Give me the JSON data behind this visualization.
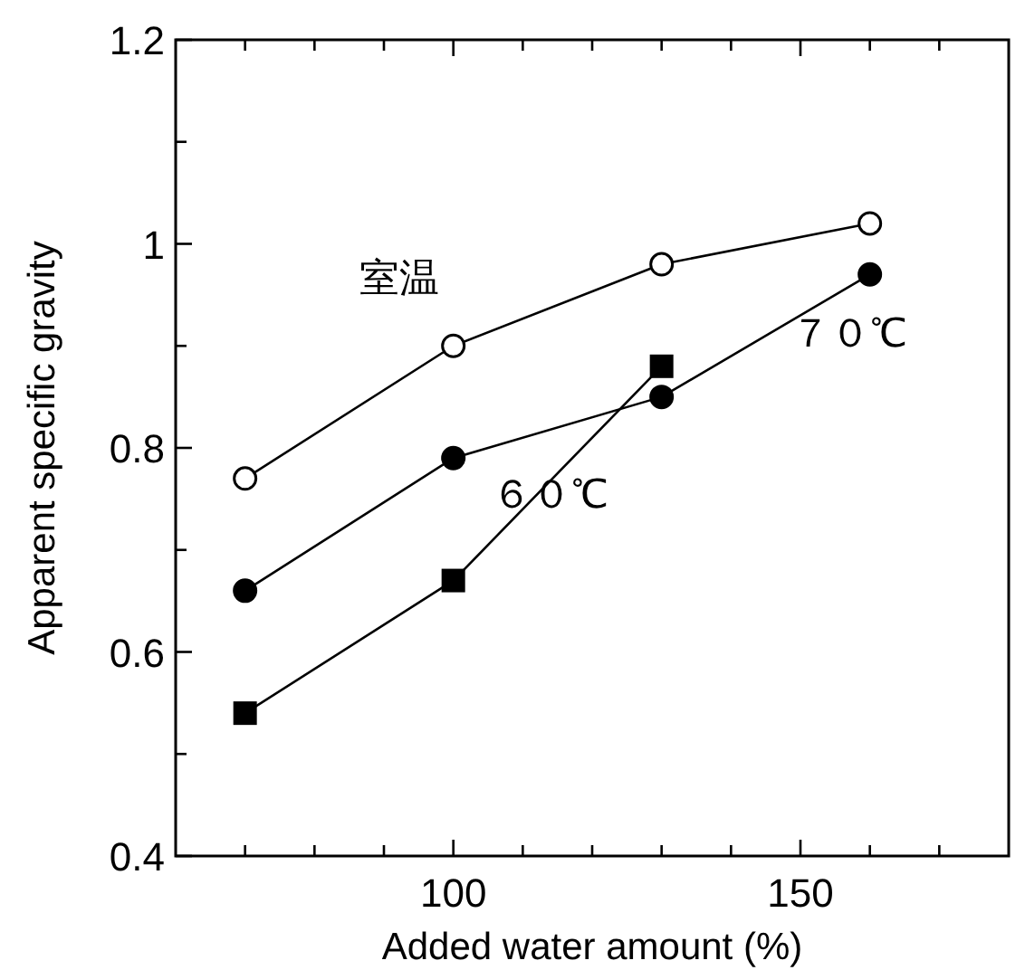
{
  "chart_data": {
    "type": "line",
    "xlabel": "Added water amount (%)",
    "ylabel": "Apparent specific gravity",
    "x": [
      70,
      100,
      130,
      160
    ],
    "series": [
      {
        "name": "室温",
        "color": "#000000",
        "marker": "circle",
        "values": [
          0.77,
          0.9,
          0.98,
          1.02
        ]
      },
      {
        "name": "６０℃",
        "color": "#000000",
        "marker": "square",
        "values": [
          0.54,
          0.67,
          0.88,
          null
        ]
      },
      {
        "name": "７０℃",
        "color": "#000000",
        "marker": "circle",
        "values": [
          0.66,
          0.79,
          0.85,
          0.97
        ]
      }
    ],
    "xlim": [
      60,
      180
    ],
    "xticks": [
      {
        "value": 70,
        "label": null
      },
      {
        "value": 80,
        "label": null
      },
      {
        "value": 90,
        "label": null
      },
      100,
      {
        "value": 110,
        "label": null
      },
      {
        "value": 120,
        "label": null
      },
      {
        "value": 130,
        "label": null
      },
      {
        "value": 140,
        "label": null
      },
      150,
      {
        "value": 160,
        "label": null
      },
      {
        "value": 170,
        "label": null
      }
    ],
    "ylim": [
      0.4,
      1.2
    ],
    "yticks": [
      0.4,
      {
        "value": 0.5,
        "label": null
      },
      0.6,
      {
        "value": 0.7,
        "label": null
      },
      0.8,
      {
        "value": 0.9,
        "label": null
      },
      1,
      {
        "value": 1.1,
        "label": null
      },
      1.2
    ],
    "grid": false
  }
}
